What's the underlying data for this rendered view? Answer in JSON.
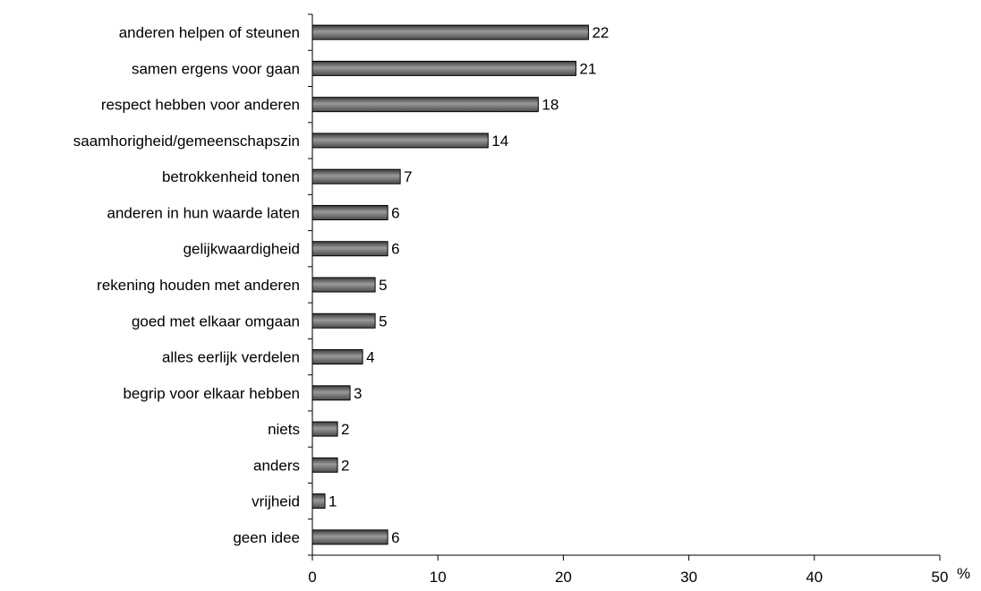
{
  "chart_data": {
    "type": "bar",
    "orientation": "horizontal",
    "categories": [
      "anderen helpen of steunen",
      "samen ergens voor gaan",
      "respect hebben voor anderen",
      "saamhorigheid/gemeenschapszin",
      "betrokkenheid tonen",
      "anderen in hun waarde laten",
      "gelijkwaardigheid",
      "rekening houden met anderen",
      "goed met elkaar omgaan",
      "alles eerlijk verdelen",
      "begrip voor elkaar hebben",
      "niets",
      "anders",
      "vrijheid",
      "geen idee"
    ],
    "values": [
      22,
      21,
      18,
      14,
      7,
      6,
      6,
      5,
      5,
      4,
      3,
      2,
      2,
      1,
      6
    ],
    "xlim": [
      0,
      50
    ],
    "x_ticks": [
      0,
      10,
      20,
      30,
      40,
      50
    ],
    "x_unit": "%",
    "grid": false,
    "bar_color": "#7f7f7f"
  }
}
